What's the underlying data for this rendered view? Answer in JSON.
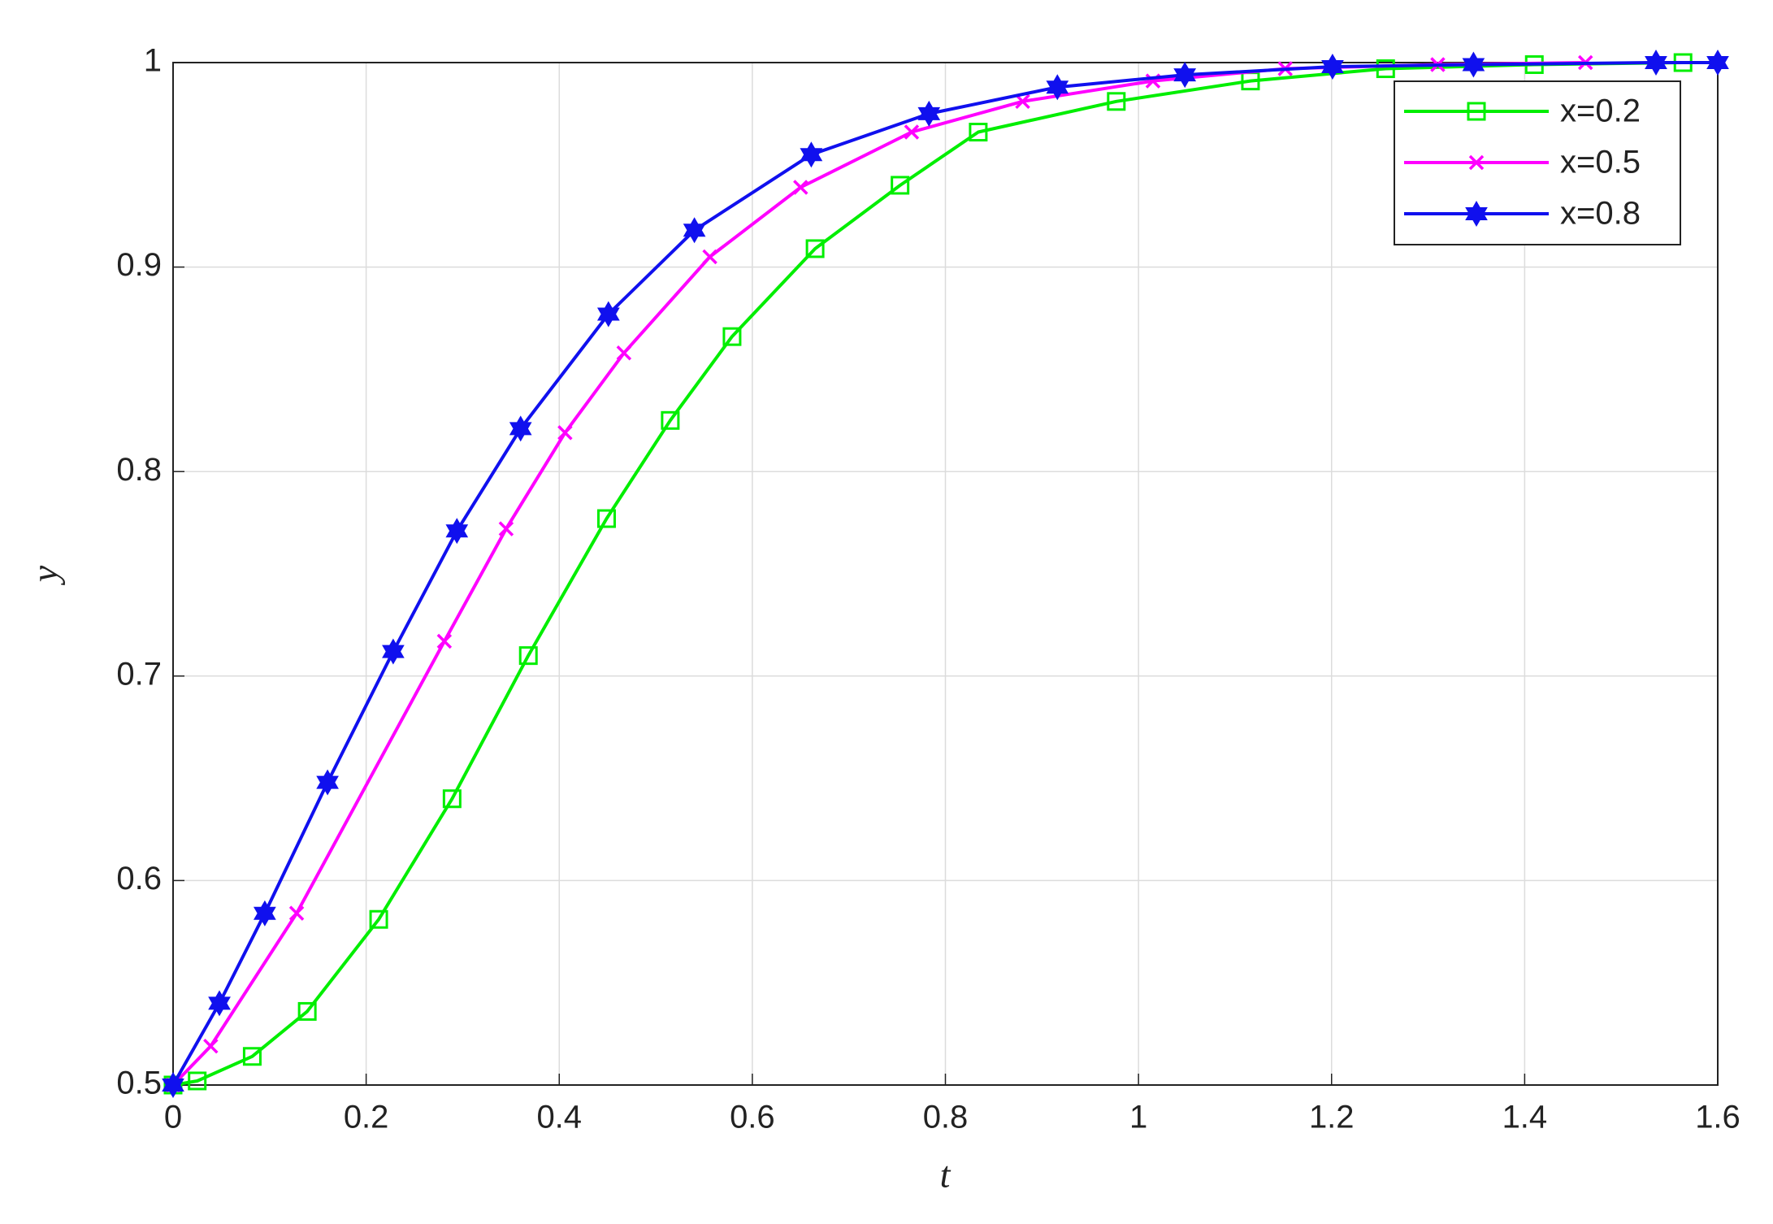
{
  "chart_data": {
    "type": "line",
    "xlabel": "t",
    "ylabel": "y",
    "xlim": [
      0,
      1.6
    ],
    "ylim": [
      0.5,
      1
    ],
    "xticks": [
      0,
      0.2,
      0.4,
      0.6,
      0.8,
      1,
      1.2,
      1.4,
      1.6
    ],
    "yticks": [
      0.5,
      0.6,
      0.7,
      0.8,
      0.9,
      1
    ],
    "grid": true,
    "legend": "northeast",
    "series": [
      {
        "name": "x=0.2",
        "color": "#00ee00",
        "marker": "square",
        "x": [
          0,
          0.025,
          0.082,
          0.139,
          0.213,
          0.289,
          0.368,
          0.449,
          0.515,
          0.579,
          0.665,
          0.753,
          0.834,
          0.977,
          1.116,
          1.256,
          1.41,
          1.564
        ],
        "values": [
          0.5,
          0.502,
          0.514,
          0.536,
          0.581,
          0.64,
          0.71,
          0.777,
          0.825,
          0.866,
          0.909,
          0.94,
          0.966,
          0.981,
          0.991,
          0.997,
          0.999,
          1.0
        ]
      },
      {
        "name": "x=0.5",
        "color": "#ff00ff",
        "marker": "x",
        "x": [
          0,
          0.039,
          0.128,
          0.281,
          0.345,
          0.406,
          0.467,
          0.556,
          0.65,
          0.765,
          0.88,
          1.015,
          1.152,
          1.31,
          1.463
        ],
        "values": [
          0.5,
          0.519,
          0.584,
          0.717,
          0.772,
          0.819,
          0.858,
          0.905,
          0.939,
          0.966,
          0.981,
          0.991,
          0.997,
          0.999,
          1.0
        ]
      },
      {
        "name": "x=0.8",
        "color": "#1010ee",
        "marker": "hexagram",
        "x": [
          0,
          0.048,
          0.095,
          0.16,
          0.228,
          0.294,
          0.36,
          0.451,
          0.54,
          0.661,
          0.783,
          0.916,
          1.048,
          1.201,
          1.347,
          1.536,
          1.6
        ],
        "values": [
          0.5,
          0.54,
          0.584,
          0.648,
          0.712,
          0.771,
          0.821,
          0.877,
          0.918,
          0.955,
          0.975,
          0.988,
          0.994,
          0.998,
          0.999,
          1.0,
          1.0
        ]
      }
    ]
  }
}
